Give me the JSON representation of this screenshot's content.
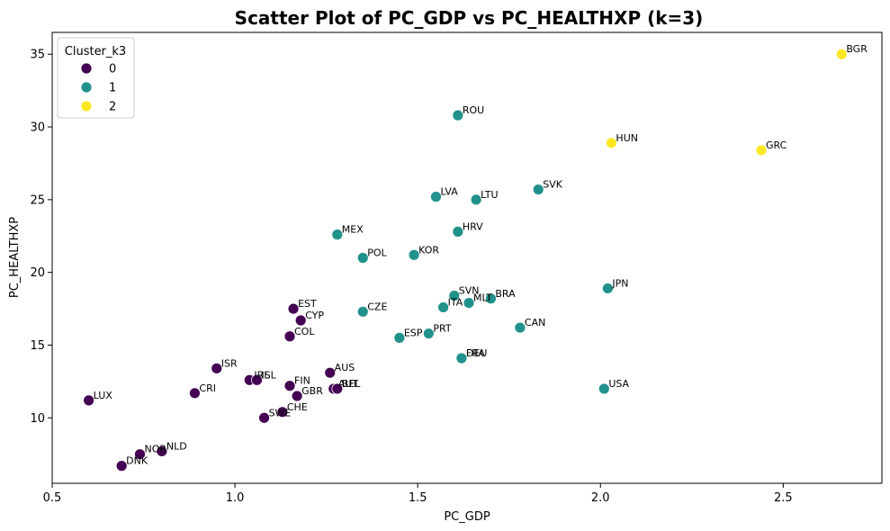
{
  "chart_data": {
    "type": "scatter",
    "title": "Scatter Plot of PC_GDP vs PC_HEALTHXP (k=3)",
    "xlabel": "PC_GDP",
    "ylabel": "PC_HEALTHXP",
    "xlim": [
      0.5,
      2.77
    ],
    "ylim": [
      5.5,
      36.5
    ],
    "xticks": [
      0.5,
      1.0,
      1.5,
      2.0,
      2.5
    ],
    "xtick_labels": [
      "0.5",
      "1.0",
      "1.5",
      "2.0",
      "2.5"
    ],
    "yticks": [
      10,
      15,
      20,
      25,
      30,
      35
    ],
    "ytick_labels": [
      "10",
      "15",
      "20",
      "25",
      "30",
      "35"
    ],
    "grid": false,
    "legend": {
      "title": "Cluster_k3",
      "placement": "upper-left",
      "entries": [
        {
          "label": "0",
          "color": "#440154"
        },
        {
          "label": "1",
          "color": "#21918c"
        },
        {
          "label": "2",
          "color": "#fde725"
        }
      ]
    },
    "points": [
      {
        "label": "BGR",
        "x": 2.66,
        "y": 35.0,
        "cluster": 2
      },
      {
        "label": "HUN",
        "x": 2.03,
        "y": 28.9,
        "cluster": 2
      },
      {
        "label": "GRC",
        "x": 2.44,
        "y": 28.4,
        "cluster": 2
      },
      {
        "label": "ROU",
        "x": 1.61,
        "y": 30.8,
        "cluster": 1
      },
      {
        "label": "SVK",
        "x": 1.83,
        "y": 25.7,
        "cluster": 1
      },
      {
        "label": "LVA",
        "x": 1.55,
        "y": 25.2,
        "cluster": 1
      },
      {
        "label": "LTU",
        "x": 1.66,
        "y": 25.0,
        "cluster": 1
      },
      {
        "label": "HRV",
        "x": 1.61,
        "y": 22.8,
        "cluster": 1
      },
      {
        "label": "MEX",
        "x": 1.28,
        "y": 22.6,
        "cluster": 1
      },
      {
        "label": "KOR",
        "x": 1.49,
        "y": 21.2,
        "cluster": 1
      },
      {
        "label": "POL",
        "x": 1.35,
        "y": 21.0,
        "cluster": 1
      },
      {
        "label": "JPN",
        "x": 2.02,
        "y": 18.9,
        "cluster": 1
      },
      {
        "label": "SVN",
        "x": 1.6,
        "y": 18.4,
        "cluster": 1
      },
      {
        "label": "BRA",
        "x": 1.7,
        "y": 18.2,
        "cluster": 1
      },
      {
        "label": "MLT",
        "x": 1.64,
        "y": 17.9,
        "cluster": 1
      },
      {
        "label": "ITA",
        "x": 1.57,
        "y": 17.6,
        "cluster": 1
      },
      {
        "label": "CZE",
        "x": 1.35,
        "y": 17.3,
        "cluster": 1
      },
      {
        "label": "CAN",
        "x": 1.78,
        "y": 16.2,
        "cluster": 1
      },
      {
        "label": "PRT",
        "x": 1.53,
        "y": 15.8,
        "cluster": 1
      },
      {
        "label": "ESP",
        "x": 1.45,
        "y": 15.5,
        "cluster": 1
      },
      {
        "label": "DEU",
        "x": 1.62,
        "y": 14.1,
        "cluster": 1
      },
      {
        "label": "FRA",
        "x": 1.62,
        "y": 14.1,
        "cluster": 1
      },
      {
        "label": "USA",
        "x": 2.01,
        "y": 12.0,
        "cluster": 1
      },
      {
        "label": "EST",
        "x": 1.16,
        "y": 17.5,
        "cluster": 0
      },
      {
        "label": "CYP",
        "x": 1.18,
        "y": 16.7,
        "cluster": 0
      },
      {
        "label": "COL",
        "x": 1.15,
        "y": 15.6,
        "cluster": 0
      },
      {
        "label": "ISR",
        "x": 0.95,
        "y": 13.4,
        "cluster": 0
      },
      {
        "label": "AUS",
        "x": 1.26,
        "y": 13.1,
        "cluster": 0
      },
      {
        "label": "IRL",
        "x": 1.04,
        "y": 12.6,
        "cluster": 0
      },
      {
        "label": "ISL",
        "x": 1.06,
        "y": 12.6,
        "cluster": 0
      },
      {
        "label": "FIN",
        "x": 1.15,
        "y": 12.2,
        "cluster": 0
      },
      {
        "label": "AUT",
        "x": 1.27,
        "y": 12.0,
        "cluster": 0
      },
      {
        "label": "BEL",
        "x": 1.28,
        "y": 12.0,
        "cluster": 0
      },
      {
        "label": "CRI",
        "x": 0.89,
        "y": 11.7,
        "cluster": 0
      },
      {
        "label": "GBR",
        "x": 1.17,
        "y": 11.5,
        "cluster": 0
      },
      {
        "label": "LUX",
        "x": 0.6,
        "y": 11.2,
        "cluster": 0
      },
      {
        "label": "CHE",
        "x": 1.13,
        "y": 10.4,
        "cluster": 0
      },
      {
        "label": "SWE",
        "x": 1.08,
        "y": 10.0,
        "cluster": 0
      },
      {
        "label": "NLD",
        "x": 0.8,
        "y": 7.7,
        "cluster": 0
      },
      {
        "label": "NOR",
        "x": 0.74,
        "y": 7.5,
        "cluster": 0
      },
      {
        "label": "DNK",
        "x": 0.69,
        "y": 6.7,
        "cluster": 0
      }
    ]
  }
}
